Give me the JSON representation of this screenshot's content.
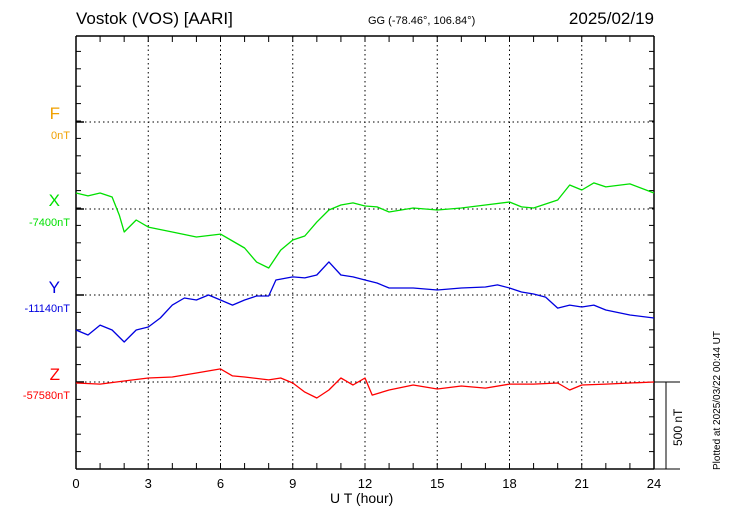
{
  "header": {
    "title": "Vostok (VOS)  [AARI]",
    "coords": "GG (-78.46°, 106.84°)",
    "date": "2025/02/19"
  },
  "footer": {
    "plotted": "Plotted at 2025/03/22 00:44 UT",
    "scale_label": "500 nT"
  },
  "chart_data": {
    "type": "line",
    "title": "Vostok (VOS)  [AARI]",
    "xlabel": "U T (hour)",
    "xlim": [
      0,
      24
    ],
    "xticks": [
      "0",
      "3",
      "6",
      "9",
      "12",
      "15",
      "18",
      "21",
      "24"
    ],
    "scale_bar_nT": 500,
    "grid": true,
    "series": [
      {
        "name": "F",
        "baseline_label": "0nT",
        "color": "#f0a000",
        "x": [],
        "values_nT": []
      },
      {
        "name": "X",
        "baseline_label": "-7400nT",
        "color": "#00e000",
        "x": [
          0,
          0.5,
          1,
          1.5,
          1.8,
          2,
          2.5,
          3,
          4,
          5,
          6,
          6.5,
          7,
          7.5,
          8,
          8.5,
          9,
          9.5,
          10,
          10.5,
          11,
          11.5,
          12,
          12.5,
          13,
          14,
          15,
          16,
          17,
          18,
          18.5,
          19,
          20,
          20.5,
          21,
          21.5,
          22,
          23,
          24
        ],
        "values_nT": [
          92,
          75,
          92,
          69,
          -35,
          -132,
          -63,
          -104,
          -132,
          -161,
          -144,
          -184,
          -224,
          -305,
          -339,
          -236,
          -178,
          -155,
          -75,
          -6,
          23,
          35,
          17,
          12,
          -17,
          6,
          -6,
          6,
          23,
          40,
          12,
          6,
          52,
          138,
          109,
          150,
          127,
          144,
          92
        ]
      },
      {
        "name": "Y",
        "baseline_label": "-11140nT",
        "color": "#0000e0",
        "x": [
          0,
          0.5,
          1,
          1.5,
          2,
          2.5,
          3,
          3.5,
          4,
          4.5,
          5,
          5.5,
          6,
          6.5,
          7,
          7.5,
          8,
          8.3,
          9,
          9.5,
          10,
          10.5,
          11,
          11.5,
          12,
          12.5,
          13,
          14,
          15,
          16,
          17,
          17.5,
          18,
          18.5,
          19,
          19.5,
          20,
          20.5,
          21,
          21.5,
          22,
          23,
          24
        ],
        "values_nT": [
          -201,
          -230,
          -173,
          -201,
          -270,
          -201,
          -184,
          -132,
          -58,
          -17,
          -29,
          0,
          -29,
          -58,
          -29,
          -6,
          -6,
          86,
          104,
          98,
          115,
          190,
          115,
          104,
          86,
          69,
          40,
          40,
          29,
          40,
          46,
          58,
          40,
          17,
          6,
          -12,
          -75,
          -58,
          -69,
          -58,
          -86,
          -115,
          -132
        ]
      },
      {
        "name": "Z",
        "baseline_label": "-57580nT",
        "color": "#ff0000",
        "x": [
          0,
          1,
          2,
          3,
          4,
          5,
          6,
          6.5,
          7,
          8,
          8.5,
          9,
          9.5,
          10,
          10.5,
          11,
          11.5,
          12,
          12.3,
          13,
          14,
          15,
          16,
          17,
          18,
          19,
          20,
          20.5,
          21,
          22,
          23,
          24
        ],
        "values_nT": [
          -6,
          -12,
          6,
          23,
          29,
          52,
          75,
          35,
          29,
          12,
          23,
          -6,
          -58,
          -92,
          -46,
          23,
          -17,
          23,
          -75,
          -46,
          -17,
          -40,
          -23,
          -35,
          -12,
          -12,
          -6,
          -46,
          -17,
          -12,
          -6,
          0
        ]
      }
    ]
  }
}
